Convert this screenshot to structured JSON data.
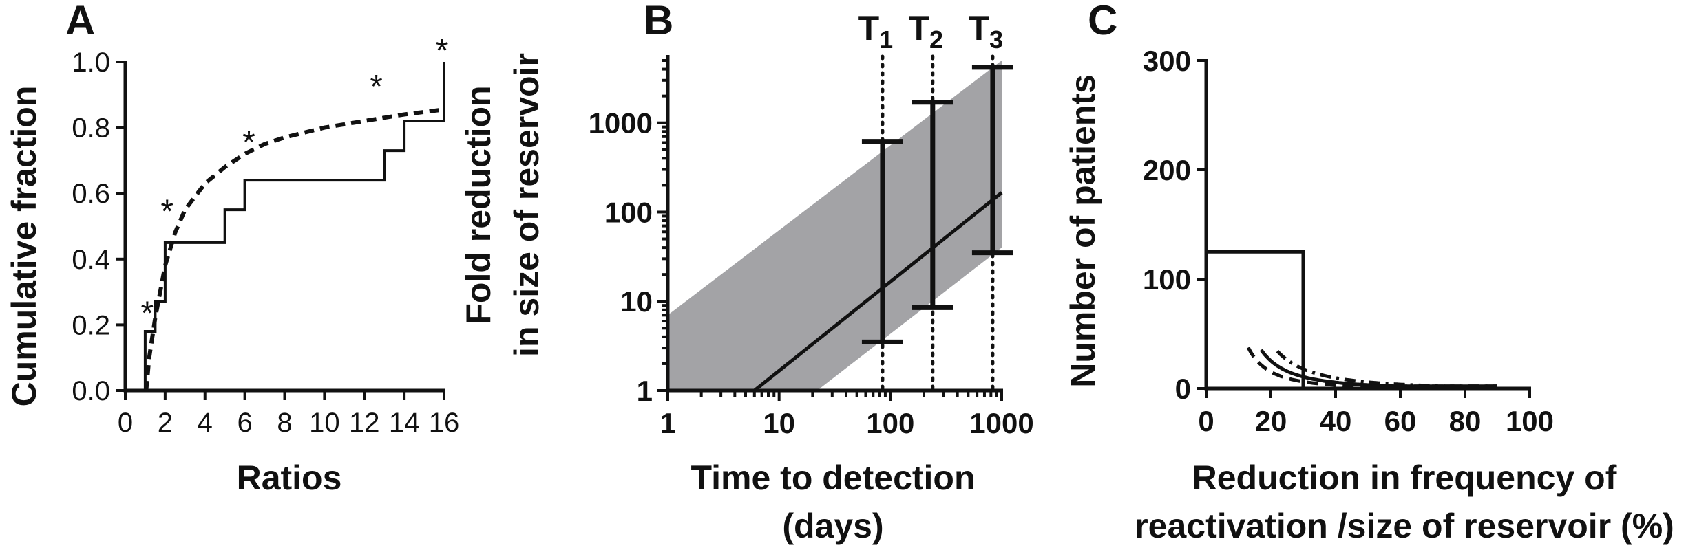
{
  "chart_data": [
    {
      "panel": "A",
      "type": "line",
      "xlabel": "Ratios",
      "ylabel": "Cumulative fraction",
      "xlim": [
        0,
        16
      ],
      "ylim": [
        0,
        1
      ],
      "x_ticks": [
        "0",
        "2",
        "4",
        "6",
        "8",
        "10",
        "12",
        "14",
        "16"
      ],
      "y_ticks": [
        "0.0",
        "0.2",
        "0.4",
        "0.6",
        "0.8",
        "1.0"
      ],
      "star_label": "*",
      "series": [
        {
          "style": "solid-step",
          "points": [
            [
              1,
              0
            ],
            [
              1,
              0.18
            ],
            [
              1.5,
              0.18
            ],
            [
              1.5,
              0.27
            ],
            [
              2,
              0.27
            ],
            [
              2,
              0.45
            ],
            [
              5,
              0.45
            ],
            [
              5,
              0.55
            ],
            [
              6,
              0.55
            ],
            [
              6,
              0.64
            ],
            [
              13,
              0.64
            ],
            [
              13,
              0.73
            ],
            [
              14,
              0.73
            ],
            [
              14,
              0.82
            ],
            [
              16,
              0.82
            ],
            [
              16,
              1.0
            ]
          ]
        },
        {
          "style": "dashed",
          "points": [
            [
              1.05,
              0
            ],
            [
              1.2,
              0.1
            ],
            [
              1.5,
              0.22
            ],
            [
              2,
              0.38
            ],
            [
              2.5,
              0.48
            ],
            [
              3,
              0.55
            ],
            [
              4,
              0.63
            ],
            [
              5,
              0.68
            ],
            [
              6,
              0.72
            ],
            [
              7,
              0.75
            ],
            [
              8,
              0.77
            ],
            [
              10,
              0.8
            ],
            [
              12,
              0.82
            ],
            [
              14,
              0.84
            ],
            [
              16,
              0.855
            ]
          ]
        }
      ],
      "annotations": [
        {
          "x": 1.1,
          "y": 0.26
        },
        {
          "x": 2.1,
          "y": 0.57
        },
        {
          "x": 6.2,
          "y": 0.78
        },
        {
          "x": 12.6,
          "y": 0.95
        },
        {
          "x": 15.9,
          "y": 1.06
        }
      ]
    },
    {
      "panel": "B",
      "type": "line",
      "xlabel_lines": [
        "Time to detection",
        "(days)"
      ],
      "ylabel_lines": [
        "Fold reduction",
        "in size of reservoir"
      ],
      "x_scale": "log",
      "y_scale": "log",
      "xlim": [
        1,
        1000
      ],
      "ylim": [
        1,
        5000
      ],
      "x_ticks": [
        "1",
        "10",
        "100",
        "1000"
      ],
      "y_ticks": [
        "1",
        "10",
        "100",
        "1000"
      ],
      "fit_line": [
        [
          6,
          1
        ],
        [
          1000,
          165
        ]
      ],
      "band": {
        "lower": [
          [
            22,
            1
          ],
          [
            1000,
            40
          ]
        ],
        "upper": [
          [
            1,
            7
          ],
          [
            1000,
            5000
          ]
        ]
      },
      "error_bars": [
        {
          "x": 85,
          "low": 3.5,
          "mid": 14,
          "high": 620
        },
        {
          "x": 240,
          "low": 8.5,
          "mid": 38,
          "high": 1700
        },
        {
          "x": 830,
          "low": 35,
          "mid": 140,
          "high": 4200
        }
      ],
      "time_markers": [
        {
          "label": "T",
          "sub": "1",
          "x": 85
        },
        {
          "label": "T",
          "sub": "2",
          "x": 240
        },
        {
          "label": "T",
          "sub": "3",
          "x": 830
        }
      ],
      "band_color": "#a3a3a6"
    },
    {
      "panel": "C",
      "type": "line",
      "xlabel_lines": [
        "Reduction in frequency of",
        "reactivation /size of reservoir (%)"
      ],
      "ylabel": "Number of patients",
      "xlim": [
        0,
        100
      ],
      "ylim": [
        0,
        300
      ],
      "x_ticks": [
        "0",
        "20",
        "40",
        "60",
        "80",
        "100"
      ],
      "y_ticks": [
        "0",
        "100",
        "200",
        "300"
      ],
      "series": [
        {
          "style": "solid",
          "k": 10500,
          "x_range": [
            17,
            90
          ]
        },
        {
          "style": "dashed",
          "k": 6500,
          "x_range": [
            13,
            90
          ]
        },
        {
          "style": "dashdot",
          "k": 17000,
          "x_range": [
            22,
            90
          ]
        }
      ],
      "reference": {
        "x": 30,
        "y": 125
      }
    }
  ]
}
